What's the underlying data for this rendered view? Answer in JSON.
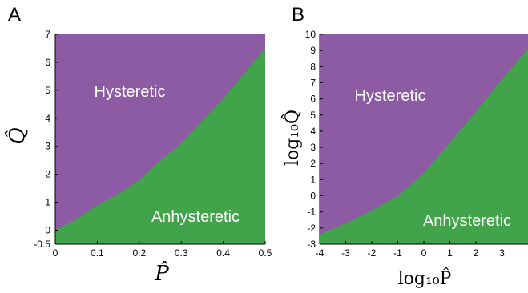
{
  "colors": {
    "hysteretic": "#8c5ba3",
    "anhysteretic": "#41a44b",
    "axis": "#000000"
  },
  "chart_data": [
    {
      "type": "area",
      "panel": "A",
      "xlabel": "P̂",
      "ylabel": "Q̂",
      "xlim": [
        0,
        0.5
      ],
      "ylim": [
        -0.5,
        7
      ],
      "xticks": [
        "0",
        "0.1",
        "0.2",
        "0.3",
        "0.4",
        "0.5"
      ],
      "xtick_values": [
        0,
        0.1,
        0.2,
        0.3,
        0.4,
        0.5
      ],
      "yticks": [
        "-0.5",
        "0",
        "1",
        "2",
        "3",
        "4",
        "5",
        "6",
        "7"
      ],
      "ytick_values": [
        -0.5,
        0,
        1,
        2,
        3,
        4,
        5,
        6,
        7
      ],
      "regions": {
        "upper": "Hysteretic",
        "lower": "Anhysteretic"
      },
      "boundary": {
        "x": [
          0,
          0.05,
          0.1,
          0.15,
          0.2,
          0.25,
          0.3,
          0.35,
          0.4,
          0.45,
          0.5
        ],
        "y": [
          0,
          0.4,
          0.9,
          1.3,
          1.8,
          2.5,
          3.1,
          3.9,
          4.7,
          5.6,
          6.5
        ]
      }
    },
    {
      "type": "area",
      "panel": "B",
      "xlabel": "log₁₀P̂",
      "ylabel": "log₁₀Q̂",
      "xlim": [
        -4,
        4
      ],
      "ylim": [
        -3,
        10
      ],
      "xticks": [
        "-4",
        "-3",
        "-2",
        "-1",
        "0",
        "1",
        "2",
        "3"
      ],
      "xtick_values": [
        -4,
        -3,
        -2,
        -1,
        0,
        1,
        2,
        3
      ],
      "yticks": [
        "-3",
        "-2",
        "-1",
        "0",
        "1",
        "2",
        "3",
        "4",
        "5",
        "6",
        "7",
        "8",
        "9",
        "10"
      ],
      "ytick_values": [
        -3,
        -2,
        -1,
        0,
        1,
        2,
        3,
        4,
        5,
        6,
        7,
        8,
        9,
        10
      ],
      "regions": {
        "upper": "Hysteretic",
        "lower": "Anhysteretic"
      },
      "boundary": {
        "x": [
          -4,
          -3,
          -2,
          -1,
          0,
          1,
          2,
          3,
          4
        ],
        "y": [
          -2.4,
          -1.7,
          -0.9,
          0,
          1.4,
          3.3,
          5.2,
          7.2,
          9.1
        ]
      }
    }
  ]
}
